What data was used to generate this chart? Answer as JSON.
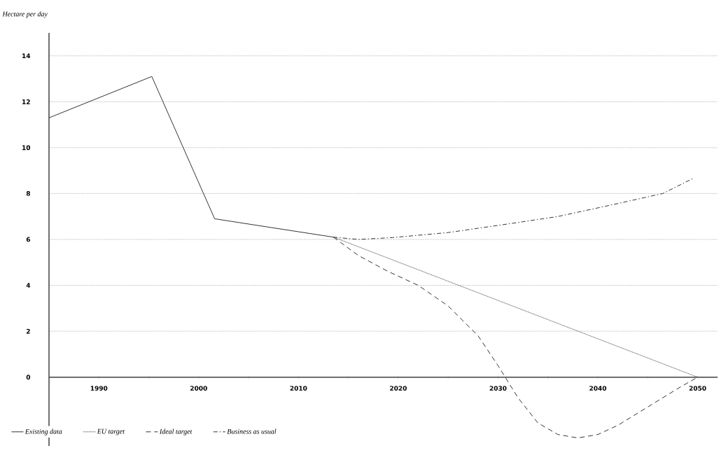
{
  "chart_data": {
    "type": "line",
    "ylabel": "Hectare per day",
    "xlim": [
      1985,
      2052
    ],
    "ylim": [
      -3,
      15
    ],
    "xticks": [
      {
        "value": 1985,
        "label": null
      },
      1990,
      {
        "value": 1995,
        "label": null
      },
      2000,
      {
        "value": 2005,
        "label": null
      },
      2010,
      {
        "value": 2015,
        "label": null
      },
      2020,
      {
        "value": 2025,
        "label": null
      },
      2030,
      {
        "value": 2035,
        "label": null
      },
      2040,
      {
        "value": 2045,
        "label": null
      },
      2050
    ],
    "yticks": [
      0,
      2,
      4,
      6,
      8,
      10,
      12,
      14
    ],
    "grid": "y",
    "legend": "bottom left",
    "marker": "none",
    "series": [
      {
        "name": "Existing data",
        "color": "#333333",
        "line_style": "solid",
        "x": [
          1985,
          1995.3,
          2001.6,
          2013.5
        ],
        "values": [
          11.3,
          13.1,
          6.9,
          6.1
        ]
      },
      {
        "name": "EU target",
        "color": "#333333",
        "line_style": "dotted",
        "x": [
          2013.5,
          2050
        ],
        "values": [
          6.1,
          0
        ]
      },
      {
        "name": "Ideal target",
        "color": "#333333",
        "line_style": "dashed",
        "x": [
          2013.5,
          2016,
          2019,
          2022,
          2025,
          2028,
          2030,
          2032,
          2034,
          2036,
          2038,
          2040,
          2042,
          2045,
          2048,
          2050
        ],
        "values": [
          6.1,
          5.3,
          4.6,
          4.0,
          3.1,
          1.8,
          0.5,
          -0.9,
          -2.0,
          -2.5,
          -2.65,
          -2.5,
          -2.1,
          -1.3,
          -0.5,
          0
        ]
      },
      {
        "name": "Business as usual",
        "color": "#333333",
        "line_style": "dashdot",
        "x": [
          2013.5,
          2016,
          2019.4,
          2025,
          2031.4,
          2036,
          2040.8,
          2046.5,
          2049.5
        ],
        "values": [
          6.1,
          6.0,
          6.08,
          6.3,
          6.7,
          7.0,
          7.45,
          8.0,
          8.65
        ]
      }
    ]
  }
}
